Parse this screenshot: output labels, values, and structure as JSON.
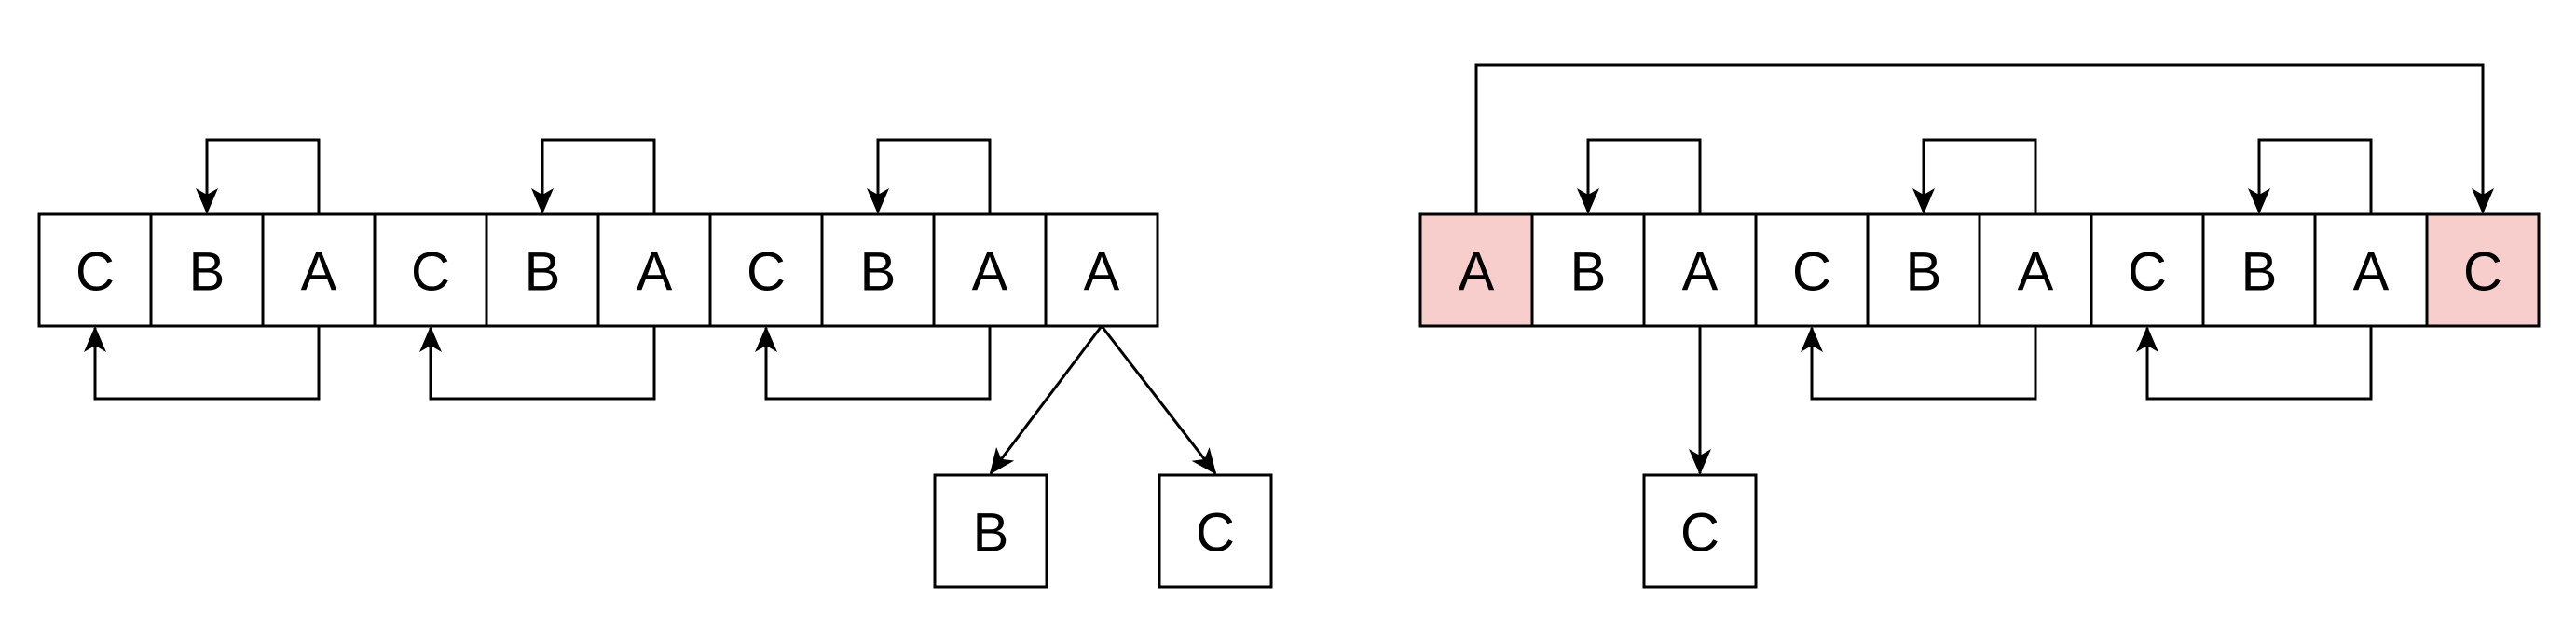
{
  "colors": {
    "cell_fill": "#ffffff",
    "highlight_fill": "#f8cecc",
    "stroke": "#000000"
  },
  "left_diagram": {
    "array": [
      {
        "label": "C",
        "highlight": false
      },
      {
        "label": "B",
        "highlight": false
      },
      {
        "label": "A",
        "highlight": false
      },
      {
        "label": "C",
        "highlight": false
      },
      {
        "label": "B",
        "highlight": false
      },
      {
        "label": "A",
        "highlight": false
      },
      {
        "label": "C",
        "highlight": false
      },
      {
        "label": "B",
        "highlight": false
      },
      {
        "label": "A",
        "highlight": false
      },
      {
        "label": "A",
        "highlight": false
      }
    ],
    "children": [
      {
        "label": "B"
      },
      {
        "label": "C"
      }
    ],
    "edges": [
      {
        "from": 2,
        "to": 1,
        "side": "top"
      },
      {
        "from": 5,
        "to": 4,
        "side": "top"
      },
      {
        "from": 8,
        "to": 7,
        "side": "top"
      },
      {
        "from": 2,
        "to": 0,
        "side": "bottom"
      },
      {
        "from": 5,
        "to": 3,
        "side": "bottom"
      },
      {
        "from": 8,
        "to": 6,
        "side": "bottom"
      }
    ]
  },
  "right_diagram": {
    "array": [
      {
        "label": "A",
        "highlight": true
      },
      {
        "label": "B",
        "highlight": false
      },
      {
        "label": "A",
        "highlight": false
      },
      {
        "label": "C",
        "highlight": false
      },
      {
        "label": "B",
        "highlight": false
      },
      {
        "label": "A",
        "highlight": false
      },
      {
        "label": "C",
        "highlight": false
      },
      {
        "label": "B",
        "highlight": false
      },
      {
        "label": "A",
        "highlight": false
      },
      {
        "label": "C",
        "highlight": true
      }
    ],
    "children": [
      {
        "label": "C"
      }
    ],
    "edges": [
      {
        "from": 0,
        "to": 9,
        "side": "top-outer"
      },
      {
        "from": 2,
        "to": 1,
        "side": "top"
      },
      {
        "from": 5,
        "to": 4,
        "side": "top"
      },
      {
        "from": 8,
        "to": 7,
        "side": "top"
      },
      {
        "from": 5,
        "to": 3,
        "side": "bottom"
      },
      {
        "from": 8,
        "to": 6,
        "side": "bottom"
      }
    ]
  }
}
